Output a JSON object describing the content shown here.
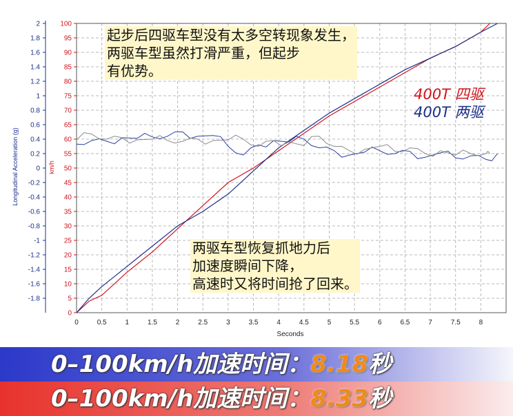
{
  "chart_data": {
    "type": "line",
    "title": "",
    "xlabel": "Seconds",
    "ylabel_left": "Longitudinal Acceleration (g)",
    "ylabel_right": "km/h",
    "xlim": [
      0,
      8.5
    ],
    "ylim_left": [
      -2,
      2
    ],
    "ylim_right": [
      0,
      100
    ],
    "grid": true,
    "x_ticks": [
      "0",
      "0.5",
      "1",
      "1.5",
      "2",
      "2.5",
      "3",
      "3.5",
      "4",
      "4.5",
      "5",
      "5.5",
      "6",
      "6.5",
      "7",
      "7.5",
      "8"
    ],
    "y_left_ticks": [
      "2",
      "1.8",
      "1.6",
      "1.4",
      "1.2",
      "1",
      "0.8",
      "0.6",
      "0.4",
      "0.2",
      "0",
      "-0.2",
      "-0.4",
      "-0.6",
      "-0.8",
      "-1",
      "-1.2",
      "-1.4",
      "-1.6",
      "-1.8"
    ],
    "y_right_ticks": [
      "100",
      "95",
      "90",
      "85",
      "80",
      "75",
      "70",
      "65",
      "60",
      "55",
      "50",
      "45",
      "40",
      "35",
      "30",
      "25",
      "20",
      "15",
      "10",
      "5",
      "0"
    ],
    "series": [
      {
        "name": "400T 四驱",
        "color": "#d0141c",
        "axis": "right",
        "x": [
          0,
          0.25,
          0.5,
          1.0,
          1.5,
          2.0,
          2.5,
          3.0,
          3.5,
          4.0,
          4.5,
          5.0,
          5.5,
          6.0,
          6.5,
          7.0,
          7.5,
          8.0,
          8.18
        ],
        "y": [
          0,
          4,
          6,
          14,
          21,
          29,
          37,
          45,
          50,
          56,
          62,
          68,
          73,
          78,
          83,
          88,
          92,
          97,
          100
        ]
      },
      {
        "name": "400T 两驱",
        "color": "#1b2f8a",
        "axis": "right",
        "x": [
          0,
          0.25,
          0.5,
          1.0,
          1.5,
          2.0,
          2.5,
          3.0,
          3.5,
          4.0,
          4.5,
          5.0,
          5.5,
          6.0,
          6.5,
          7.0,
          7.5,
          8.0,
          8.33
        ],
        "y": [
          0,
          5,
          9,
          16,
          23,
          30,
          35,
          41,
          49,
          57,
          63,
          69,
          74,
          79,
          84,
          88,
          92,
          97,
          100
        ]
      },
      {
        "name": "",
        "color": "#2a3f9e",
        "axis": "left",
        "x": [
          0,
          0.3,
          0.6,
          0.9,
          1.2,
          1.5,
          1.8,
          2.1,
          2.4,
          2.7,
          3.0,
          3.3,
          3.6,
          3.9,
          4.2,
          4.5,
          4.8,
          5.1,
          5.4,
          5.7,
          6.0,
          6.3,
          6.6,
          6.9,
          7.2,
          7.5,
          7.8,
          8.1,
          8.33
        ],
        "y": [
          0.33,
          0.38,
          0.37,
          0.42,
          0.41,
          0.43,
          0.44,
          0.5,
          0.44,
          0.45,
          0.3,
          0.18,
          0.32,
          0.38,
          0.36,
          0.4,
          0.28,
          0.24,
          0.18,
          0.22,
          0.24,
          0.2,
          0.23,
          0.15,
          0.21,
          0.14,
          0.17,
          0.12,
          0.2
        ]
      },
      {
        "name": "",
        "color": "#8a8a8a",
        "axis": "left",
        "x": [
          0,
          0.3,
          0.6,
          0.9,
          1.2,
          1.5,
          1.8,
          2.1,
          2.4,
          2.7,
          3.0,
          3.3,
          3.6,
          3.9,
          4.2,
          4.5,
          4.8,
          5.1,
          5.4,
          5.7,
          6.0,
          6.3,
          6.6,
          6.9,
          7.2,
          7.5,
          7.8,
          8.1,
          8.18
        ],
        "y": [
          0.39,
          0.47,
          0.4,
          0.42,
          0.39,
          0.4,
          0.38,
          0.37,
          0.4,
          0.38,
          0.39,
          0.4,
          0.3,
          0.38,
          0.36,
          0.31,
          0.44,
          0.3,
          0.24,
          0.26,
          0.3,
          0.23,
          0.28,
          0.2,
          0.24,
          0.18,
          0.2,
          0.2,
          0.2
        ]
      }
    ]
  },
  "annotations": {
    "top": "起步后四驱车型没有太多空转现象发生，\n两驱车型虽然打滑严重，但起步\n有优势。",
    "mid": "两驱车型恢复抓地力后\n加速度瞬间下降，\n高速时又将时间抢了回来。"
  },
  "legend": {
    "red_label": "400T 四驱",
    "blue_label": "400T 两驱",
    "red_color": "#d0141c",
    "blue_color": "#1b2f8a"
  },
  "banners": {
    "blue": {
      "label": "0–100km/h加速时间：",
      "time": "8.18",
      "unit": "秒"
    },
    "red": {
      "label": "0–100km/h加速时间：",
      "time": "8.33",
      "unit": "秒"
    }
  }
}
